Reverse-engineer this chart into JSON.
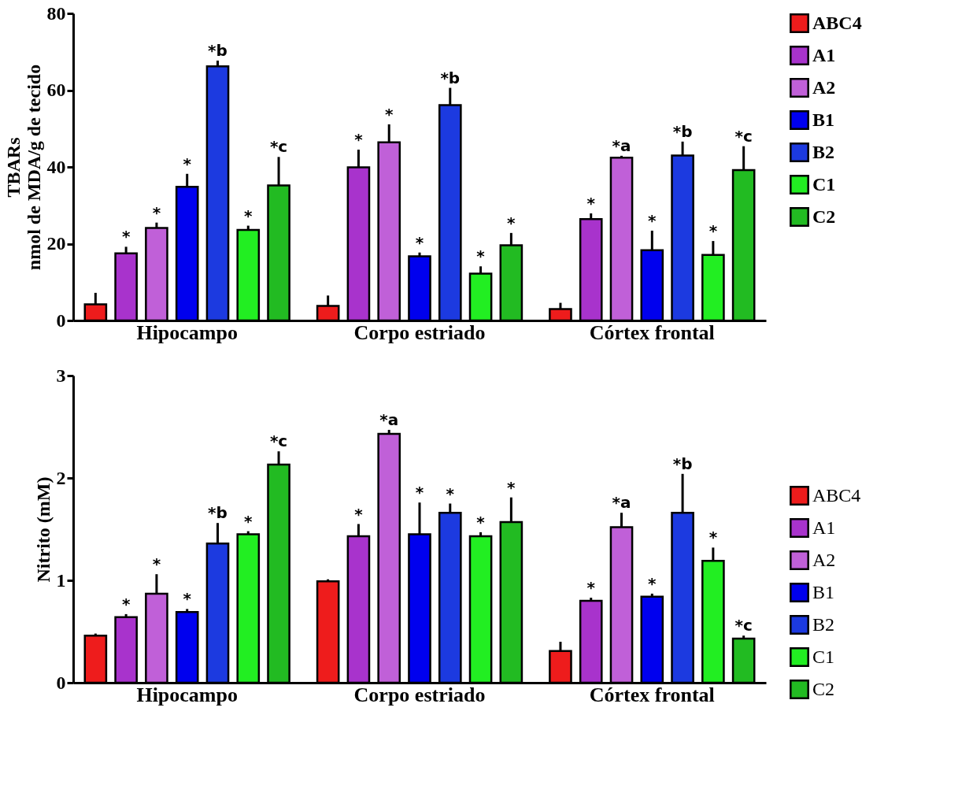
{
  "chart_data": [
    {
      "type": "bar",
      "ylabel": "TBARs\nnmol de MDA/g de tecido",
      "categories": [
        "Hipocampo",
        "Corpo estriado",
        "Córtex frontal"
      ],
      "ylim": [
        0,
        80
      ],
      "yticks": [
        0,
        20,
        40,
        60,
        80
      ],
      "grid": false,
      "legend": "right",
      "series": [
        {
          "name": "ABC4",
          "color": "#ee1c1c",
          "values": [
            4.2,
            3.8,
            3.0
          ],
          "errors": [
            [
              4.2,
              7.2
            ],
            [
              3.8,
              6.5
            ],
            [
              3.0,
              4.6
            ]
          ],
          "value_labels": [
            null,
            null,
            null
          ]
        },
        {
          "name": "A1",
          "color": "#a833cc",
          "values": [
            17.5,
            39.9,
            26.4
          ],
          "errors": [
            [
              17.5,
              19.2
            ],
            [
              39.9,
              44.5
            ],
            [
              26.4,
              27.9
            ]
          ],
          "value_labels": [
            "*",
            "*",
            "*"
          ]
        },
        {
          "name": "A2",
          "color": "#c060d8",
          "values": [
            24.1,
            46.4,
            42.4
          ],
          "errors": [
            [
              24.1,
              25.5
            ],
            [
              46.4,
              51.1
            ],
            [
              42.4,
              42.9
            ]
          ],
          "value_labels": [
            "*",
            "*",
            "*a"
          ]
        },
        {
          "name": "B1",
          "color": "#0000ee",
          "values": [
            34.8,
            16.7,
            18.3
          ],
          "errors": [
            [
              34.8,
              38.2
            ],
            [
              16.7,
              17.7
            ],
            [
              18.3,
              23.4
            ]
          ],
          "value_labels": [
            "*",
            "*",
            "*"
          ]
        },
        {
          "name": "B2",
          "color": "#1c3ae0",
          "values": [
            66.2,
            56.1,
            43.0
          ],
          "errors": [
            [
              66.2,
              67.7
            ],
            [
              56.1,
              60.6
            ],
            [
              43.0,
              46.6
            ]
          ],
          "value_labels": [
            "*b",
            "*b",
            "*b"
          ]
        },
        {
          "name": "C1",
          "color": "#22ee22",
          "values": [
            23.6,
            12.2,
            17.1
          ],
          "errors": [
            [
              23.6,
              24.7
            ],
            [
              12.2,
              14.1
            ],
            [
              17.1,
              20.7
            ]
          ],
          "value_labels": [
            "*",
            "*",
            "*"
          ]
        },
        {
          "name": "C2",
          "color": "#22bb22",
          "values": [
            35.2,
            19.6,
            39.2
          ],
          "errors": [
            [
              35.2,
              42.6
            ],
            [
              19.6,
              22.8
            ],
            [
              39.2,
              45.4
            ]
          ],
          "value_labels": [
            "*c",
            "*",
            "*c"
          ]
        }
      ]
    },
    {
      "type": "bar",
      "ylabel": "Nitrito (mM)",
      "categories": [
        "Hipocampo",
        "Corpo estriado",
        "Córtex frontal"
      ],
      "ylim": [
        0,
        3
      ],
      "yticks": [
        0,
        1,
        2,
        3
      ],
      "grid": false,
      "legend": "right",
      "series": [
        {
          "name": "ABC4",
          "color": "#ee1c1c",
          "values": [
            0.46,
            0.99,
            0.31
          ],
          "errors": [
            [
              0.46,
              0.48
            ],
            [
              0.99,
              1.01
            ],
            [
              0.31,
              0.4
            ]
          ],
          "value_labels": [
            null,
            null,
            null
          ]
        },
        {
          "name": "A1",
          "color": "#a833cc",
          "values": [
            0.64,
            1.43,
            0.8
          ],
          "errors": [
            [
              0.64,
              0.67
            ],
            [
              1.43,
              1.55
            ],
            [
              0.8,
              0.83
            ]
          ],
          "value_labels": [
            "*",
            "*",
            "*"
          ]
        },
        {
          "name": "A2",
          "color": "#c060d8",
          "values": [
            0.87,
            2.43,
            1.52
          ],
          "errors": [
            [
              0.87,
              1.06
            ],
            [
              2.43,
              2.47
            ],
            [
              1.52,
              1.66
            ]
          ],
          "value_labels": [
            "*",
            "*a",
            "*a"
          ]
        },
        {
          "name": "B1",
          "color": "#0000ee",
          "values": [
            0.69,
            1.45,
            0.84
          ],
          "errors": [
            [
              0.69,
              0.72
            ],
            [
              1.45,
              1.76
            ],
            [
              0.84,
              0.87
            ]
          ],
          "value_labels": [
            "*",
            "*",
            "*"
          ]
        },
        {
          "name": "B2",
          "color": "#1c3ae0",
          "values": [
            1.36,
            1.66,
            1.66
          ],
          "errors": [
            [
              1.36,
              1.56
            ],
            [
              1.66,
              1.75
            ],
            [
              1.66,
              2.04
            ]
          ],
          "value_labels": [
            "*b",
            "*",
            "*b"
          ]
        },
        {
          "name": "C1",
          "color": "#22ee22",
          "values": [
            1.45,
            1.43,
            1.19
          ],
          "errors": [
            [
              1.45,
              1.48
            ],
            [
              1.43,
              1.47
            ],
            [
              1.19,
              1.32
            ]
          ],
          "value_labels": [
            "*",
            "*",
            "*"
          ]
        },
        {
          "name": "C2",
          "color": "#22bb22",
          "values": [
            2.13,
            1.57,
            0.43
          ],
          "errors": [
            [
              2.13,
              2.26
            ],
            [
              1.57,
              1.81
            ],
            [
              0.43,
              0.46
            ]
          ],
          "value_labels": [
            "*c",
            "*",
            "*c"
          ]
        }
      ]
    }
  ]
}
